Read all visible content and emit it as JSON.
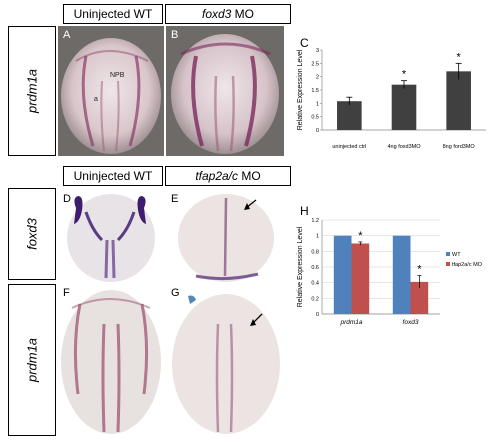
{
  "top": {
    "col1_header": "Uninjected WT",
    "col2_header": "foxd3",
    "col2_header_suffix": " MO",
    "row_label": "prdm1a",
    "panel_a": "A",
    "panel_b": "B",
    "panel_c": "C",
    "npb_label": "NPB",
    "a_label": "a"
  },
  "bottom": {
    "col1_header": "Uninjected WT",
    "col2_header": "tfap2a/c",
    "col2_header_suffix": " MO",
    "row1_label": "foxd3",
    "row2_label": "prdm1a",
    "panel_d": "D",
    "panel_e": "E",
    "panel_f": "F",
    "panel_g": "G",
    "panel_h": "H"
  },
  "colors": {
    "bar_gray": "#404040",
    "wt_blue": "#4f81bd",
    "mo_red": "#c0504d",
    "embryo_base": "#e6d9dc",
    "stain": "#7a2a5c"
  },
  "chart_data": [
    {
      "type": "bar",
      "ylabel": "Relative Expression Level",
      "ylim": [
        0,
        3
      ],
      "yticks": [
        "0",
        "0.5",
        "1",
        "1.5",
        "2",
        "2.5",
        "3"
      ],
      "categories": [
        "uninjected ctrl",
        "4ng foxd3MO",
        "8ng ford3MO"
      ],
      "values": [
        1.08,
        1.7,
        2.2
      ],
      "errors": [
        0.15,
        0.15,
        0.3
      ],
      "significance": [
        "",
        "*",
        "*"
      ]
    },
    {
      "type": "bar",
      "ylabel": "Relative Expression Level",
      "ylim": [
        0,
        1.2
      ],
      "yticks": [
        "0",
        "0.2",
        "0.4",
        "0.6",
        "0.8",
        "1",
        "1.2"
      ],
      "categories": [
        "prdm1a",
        "foxd3"
      ],
      "series": [
        {
          "name": "WT",
          "values": [
            1.0,
            1.0
          ],
          "errors": [
            0.0,
            0.0
          ]
        },
        {
          "name": "tfap2a/c MO",
          "values": [
            0.9,
            0.41
          ],
          "errors": [
            0.02,
            0.08
          ]
        }
      ],
      "significance": [
        "*",
        "*"
      ]
    }
  ]
}
